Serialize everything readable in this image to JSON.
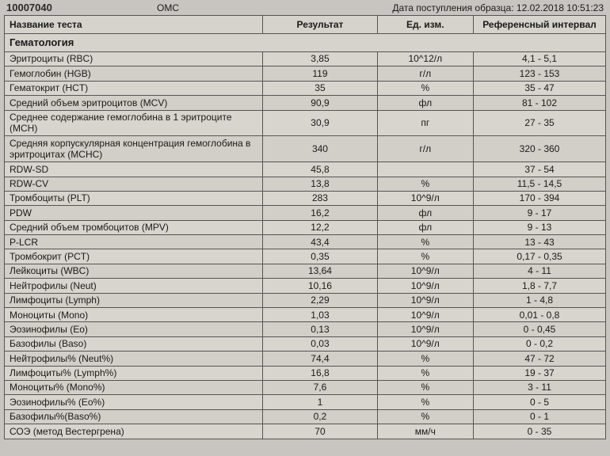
{
  "header": {
    "code_fragment": "10007040",
    "omc": "ОМС",
    "date_label": "Дата поступления образца:",
    "date_value": "12.02.2018 10:51:23"
  },
  "columns": {
    "name": "Название теста",
    "result": "Результат",
    "unit": "Ед. изм.",
    "ref": "Референсный интервал"
  },
  "section": "Гематология",
  "rows": [
    {
      "name": "Эритроциты (RBC)",
      "res": "3,85",
      "unit": "10^12/л",
      "ref": "4,1 - 5,1"
    },
    {
      "name": "Гемоглобин (HGB)",
      "res": "119",
      "unit": "г/л",
      "ref": "123 - 153"
    },
    {
      "name": "Гематокрит (HCT)",
      "res": "35",
      "unit": "%",
      "ref": "35 - 47"
    },
    {
      "name": "Средний объем эритроцитов (MCV)",
      "res": "90,9",
      "unit": "фл",
      "ref": "81 - 102"
    },
    {
      "name": "Среднее содержание гемоглобина в 1 эритроците (MCH)",
      "res": "30,9",
      "unit": "пг",
      "ref": "27 - 35"
    },
    {
      "name": "Средняя корпускулярная концентрация гемоглобина в эритроцитах (MCHC)",
      "res": "340",
      "unit": "г/л",
      "ref": "320 - 360"
    },
    {
      "name": "RDW-SD",
      "res": "45,8",
      "unit": "",
      "ref": "37 - 54"
    },
    {
      "name": "RDW-CV",
      "res": "13,8",
      "unit": "%",
      "ref": "11,5 - 14,5"
    },
    {
      "name": "Тромбоциты (PLT)",
      "res": "283",
      "unit": "10^9/л",
      "ref": "170 - 394"
    },
    {
      "name": "PDW",
      "res": "16,2",
      "unit": "фл",
      "ref": "9 - 17"
    },
    {
      "name": "Средний объем тромбоцитов (MPV)",
      "res": "12,2",
      "unit": "фл",
      "ref": "9 - 13"
    },
    {
      "name": "P-LCR",
      "res": "43,4",
      "unit": "%",
      "ref": "13 - 43"
    },
    {
      "name": "Тромбокрит (PCT)",
      "res": "0,35",
      "unit": "%",
      "ref": "0,17 - 0,35"
    },
    {
      "name": "Лейкоциты (WBC)",
      "res": "13,64",
      "unit": "10^9/л",
      "ref": "4 - 11"
    },
    {
      "name": "Нейтрофилы (Neut)",
      "res": "10,16",
      "unit": "10^9/л",
      "ref": "1,8 - 7,7"
    },
    {
      "name": "Лимфоциты (Lymph)",
      "res": "2,29",
      "unit": "10^9/л",
      "ref": "1 - 4,8"
    },
    {
      "name": "Моноциты (Mono)",
      "res": "1,03",
      "unit": "10^9/л",
      "ref": "0,01 - 0,8"
    },
    {
      "name": "Эозинофилы (Eo)",
      "res": "0,13",
      "unit": "10^9/л",
      "ref": "0 - 0,45"
    },
    {
      "name": "Базофилы (Baso)",
      "res": "0,03",
      "unit": "10^9/л",
      "ref": "0 - 0,2"
    },
    {
      "name": "Нейтрофилы% (Neut%)",
      "res": "74,4",
      "unit": "%",
      "ref": "47 - 72"
    },
    {
      "name": "Лимфоциты% (Lymph%)",
      "res": "16,8",
      "unit": "%",
      "ref": "19 - 37"
    },
    {
      "name": "Моноциты% (Mono%)",
      "res": "7,6",
      "unit": "%",
      "ref": "3 - 11"
    },
    {
      "name": "Эозинофилы% (Eo%)",
      "res": "1",
      "unit": "%",
      "ref": "0 - 5"
    },
    {
      "name": "Базофилы%(Baso%)",
      "res": "0,2",
      "unit": "%",
      "ref": "0 - 1"
    },
    {
      "name": "СОЭ (метод Вестергрена)",
      "res": "70",
      "unit": "мм/ч",
      "ref": "0 - 35"
    }
  ],
  "style": {
    "bg": "#c8c4c0",
    "cell_bg": "#d8d4ce",
    "border": "#555555",
    "text": "#1a1a1a",
    "font_size": 12
  }
}
